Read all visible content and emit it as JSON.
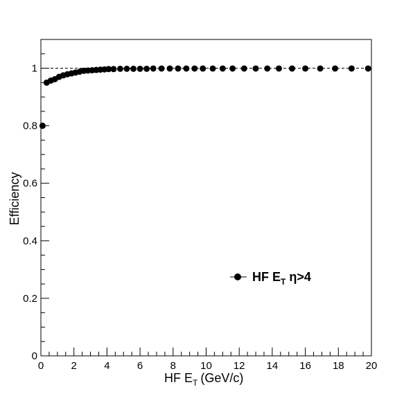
{
  "chart_data": {
    "type": "scatter",
    "title": "",
    "xlabel": "HF E",
    "xlabel_subscript": "T",
    "xlabel_unit": "(GeV/c)",
    "ylabel": "Efficiency",
    "xlim": [
      0,
      20
    ],
    "ylim": [
      0,
      1.1
    ],
    "x_ticks": [
      0,
      2,
      4,
      6,
      8,
      10,
      12,
      14,
      16,
      18,
      20
    ],
    "y_ticks": [
      0,
      0.2,
      0.4,
      0.6,
      0.8,
      1
    ],
    "y_tick_labels": [
      "0",
      "0.2",
      "0.4",
      "0.6",
      "0.8",
      "1"
    ],
    "reference_line": 1,
    "grid": false,
    "legend_position": "lower-right",
    "series": [
      {
        "name_parts": [
          "HF E",
          "T",
          " η>4"
        ],
        "color": "#000000",
        "marker": "circle",
        "x": [
          0.1,
          0.35,
          0.6,
          0.85,
          1.1,
          1.35,
          1.6,
          1.85,
          2.1,
          2.35,
          2.6,
          2.85,
          3.1,
          3.35,
          3.6,
          3.85,
          4.1,
          4.4,
          4.8,
          5.2,
          5.6,
          6.0,
          6.4,
          6.8,
          7.3,
          7.8,
          8.3,
          8.8,
          9.3,
          9.8,
          10.4,
          11.0,
          11.6,
          12.3,
          13.0,
          13.7,
          14.4,
          15.2,
          16.0,
          16.9,
          17.8,
          18.8,
          19.8
        ],
        "y": [
          0.8,
          0.95,
          0.957,
          0.962,
          0.97,
          0.975,
          0.979,
          0.982,
          0.985,
          0.988,
          0.991,
          0.992,
          0.993,
          0.994,
          0.995,
          0.996,
          0.997,
          0.997,
          0.998,
          0.998,
          0.998,
          0.998,
          0.998,
          0.999,
          0.999,
          0.999,
          0.999,
          0.999,
          0.999,
          0.999,
          0.999,
          0.999,
          0.999,
          0.999,
          0.999,
          0.999,
          0.999,
          0.999,
          0.999,
          0.999,
          0.999,
          0.999,
          0.999
        ]
      }
    ]
  }
}
